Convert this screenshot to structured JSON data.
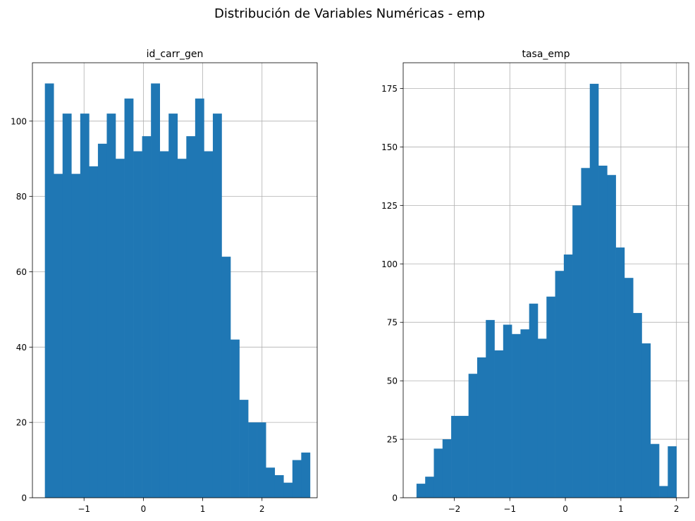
{
  "figure": {
    "suptitle": "Distribución de Variables Numéricas - emp"
  },
  "chart_data": [
    {
      "type": "bar",
      "title": "id_carr_gen",
      "xlabel": "",
      "ylabel": "",
      "xlim": [
        -1.87,
        2.93
      ],
      "ylim": [
        0,
        115.5
      ],
      "xticks": [
        -1,
        0,
        1,
        2
      ],
      "xtick_labels": [
        "−1",
        "0",
        "1",
        "2"
      ],
      "yticks": [
        0,
        20,
        40,
        60,
        80,
        100
      ],
      "ytick_labels": [
        "0",
        "20",
        "40",
        "60",
        "80",
        "100"
      ],
      "grid": true,
      "color": "#1f77b4",
      "bin_edges": [
        -1.66,
        -1.511,
        -1.362,
        -1.213,
        -1.064,
        -0.915,
        -0.766,
        -0.617,
        -0.468,
        -0.319,
        -0.17,
        -0.021,
        0.128,
        0.277,
        0.426,
        0.575,
        0.724,
        0.873,
        1.022,
        1.171,
        1.32,
        1.469,
        1.618,
        1.767,
        1.916,
        2.065,
        2.214,
        2.363,
        2.512,
        2.661,
        2.81
      ],
      "values": [
        110,
        86,
        102,
        86,
        102,
        88,
        94,
        102,
        90,
        106,
        92,
        96,
        110,
        92,
        102,
        90,
        96,
        106,
        92,
        102,
        64,
        42,
        26,
        20,
        20,
        8,
        6,
        4,
        10,
        12
      ]
    },
    {
      "type": "bar",
      "title": "tasa_emp",
      "xlabel": "",
      "ylabel": "",
      "xlim": [
        -2.92,
        2.22
      ],
      "ylim": [
        0,
        186
      ],
      "xticks": [
        -2,
        -1,
        0,
        1,
        2
      ],
      "xtick_labels": [
        "−2",
        "−1",
        "0",
        "1",
        "2"
      ],
      "yticks": [
        0,
        25,
        50,
        75,
        100,
        125,
        150,
        175
      ],
      "ytick_labels": [
        "0",
        "25",
        "50",
        "75",
        "100",
        "125",
        "150",
        "175"
      ],
      "grid": true,
      "color": "#1f77b4",
      "bin_edges": [
        -2.68,
        -2.524,
        -2.368,
        -2.212,
        -2.056,
        -1.9,
        -1.744,
        -1.588,
        -1.432,
        -1.276,
        -1.12,
        -0.964,
        -0.808,
        -0.652,
        -0.496,
        -0.34,
        -0.184,
        -0.028,
        0.128,
        0.284,
        0.44,
        0.596,
        0.752,
        0.908,
        1.064,
        1.22,
        1.376,
        1.532,
        1.688,
        1.844,
        2.0
      ],
      "values": [
        6,
        9,
        21,
        25,
        35,
        35,
        53,
        60,
        76,
        63,
        74,
        70,
        72,
        83,
        68,
        86,
        97,
        104,
        125,
        141,
        177,
        142,
        138,
        107,
        94,
        79,
        66,
        23,
        5,
        22
      ]
    }
  ]
}
